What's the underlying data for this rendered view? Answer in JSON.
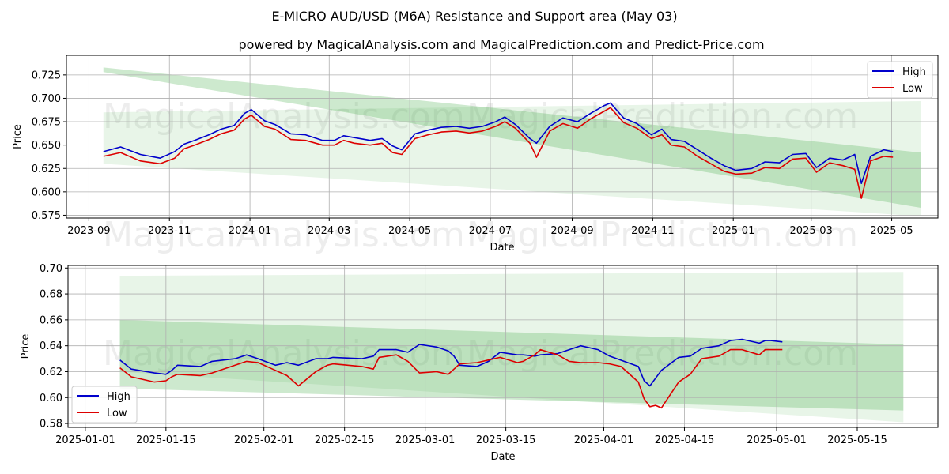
{
  "title": "E-MICRO AUD/USD (M6A) Resistance and Support area (May 03)",
  "subtitle": "powered by MagicalAnalysis.com and MagicalPrediction.com and Predict-Price.com",
  "watermarks": [
    "MagicalAnalysis.com",
    "MagicalPrediction.com"
  ],
  "colors": {
    "high": "#0000cc",
    "low": "#dd0000",
    "band": "#4caf50"
  },
  "chart_data": [
    {
      "type": "line",
      "xlabel": "Date",
      "ylabel": "Price",
      "grid": true,
      "legend_position": "top-right",
      "x_range": [
        "2023-08-15",
        "2025-06-05"
      ],
      "ylim": [
        0.572,
        0.746
      ],
      "yticks": [
        0.575,
        0.6,
        0.625,
        0.65,
        0.675,
        0.7,
        0.725
      ],
      "ytick_labels": [
        "0.575",
        "0.600",
        "0.625",
        "0.650",
        "0.675",
        "0.700",
        "0.725"
      ],
      "xticks": [
        "2023-09-01",
        "2023-11-01",
        "2024-01-01",
        "2024-03-01",
        "2024-05-01",
        "2024-07-01",
        "2024-09-01",
        "2024-11-01",
        "2025-01-01",
        "2025-03-01",
        "2025-05-01"
      ],
      "xtick_labels": [
        "2023-09",
        "2023-11",
        "2024-01",
        "2024-03",
        "2024-05",
        "2024-07",
        "2024-09",
        "2024-11",
        "2025-01",
        "2025-03",
        "2025-05"
      ],
      "bands": [
        {
          "x0": "2023-09-12",
          "x1": "2025-05-23",
          "upper": [
            0.733,
            0.642
          ],
          "lower": [
            0.728,
            0.583
          ],
          "shade": "dark"
        },
        {
          "x0": "2023-09-12",
          "x1": "2025-05-23",
          "upper": [
            0.685,
            0.697
          ],
          "lower": [
            0.63,
            0.574
          ],
          "shade": "light"
        }
      ],
      "series": [
        {
          "name": "High",
          "dates": [
            "2023-09-12",
            "2023-09-25",
            "2023-10-10",
            "2023-10-25",
            "2023-11-05",
            "2023-11-12",
            "2023-11-20",
            "2023-12-01",
            "2023-12-10",
            "2023-12-20",
            "2023-12-28",
            "2024-01-02",
            "2024-01-12",
            "2024-01-20",
            "2024-02-01",
            "2024-02-12",
            "2024-02-25",
            "2024-03-05",
            "2024-03-12",
            "2024-03-20",
            "2024-04-01",
            "2024-04-10",
            "2024-04-18",
            "2024-04-25",
            "2024-05-05",
            "2024-05-15",
            "2024-05-25",
            "2024-06-05",
            "2024-06-15",
            "2024-06-25",
            "2024-07-05",
            "2024-07-12",
            "2024-07-20",
            "2024-07-31",
            "2024-08-05",
            "2024-08-15",
            "2024-08-25",
            "2024-09-05",
            "2024-09-15",
            "2024-09-25",
            "2024-09-30",
            "2024-10-10",
            "2024-10-20",
            "2024-10-31",
            "2024-11-08",
            "2024-11-15",
            "2024-11-25",
            "2024-12-05",
            "2024-12-15",
            "2024-12-25",
            "2025-01-03",
            "2025-01-15",
            "2025-01-25",
            "2025-02-05",
            "2025-02-15",
            "2025-02-25",
            "2025-03-05",
            "2025-03-15",
            "2025-03-25",
            "2025-04-03",
            "2025-04-08",
            "2025-04-15",
            "2025-04-25",
            "2025-05-02"
          ],
          "values": [
            0.643,
            0.648,
            0.64,
            0.636,
            0.643,
            0.651,
            0.655,
            0.661,
            0.667,
            0.671,
            0.684,
            0.688,
            0.676,
            0.672,
            0.662,
            0.661,
            0.655,
            0.655,
            0.66,
            0.658,
            0.655,
            0.657,
            0.649,
            0.645,
            0.662,
            0.666,
            0.669,
            0.67,
            0.668,
            0.67,
            0.675,
            0.68,
            0.672,
            0.657,
            0.652,
            0.67,
            0.679,
            0.675,
            0.684,
            0.692,
            0.695,
            0.679,
            0.673,
            0.661,
            0.667,
            0.656,
            0.654,
            0.645,
            0.636,
            0.628,
            0.623,
            0.625,
            0.632,
            0.631,
            0.64,
            0.641,
            0.626,
            0.636,
            0.634,
            0.64,
            0.609,
            0.638,
            0.645,
            0.643
          ]
        },
        {
          "name": "Low",
          "dates": [
            "2023-09-12",
            "2023-09-25",
            "2023-10-10",
            "2023-10-25",
            "2023-11-05",
            "2023-11-12",
            "2023-11-20",
            "2023-12-01",
            "2023-12-10",
            "2023-12-20",
            "2023-12-28",
            "2024-01-02",
            "2024-01-12",
            "2024-01-20",
            "2024-02-01",
            "2024-02-12",
            "2024-02-25",
            "2024-03-05",
            "2024-03-12",
            "2024-03-20",
            "2024-04-01",
            "2024-04-10",
            "2024-04-18",
            "2024-04-25",
            "2024-05-05",
            "2024-05-15",
            "2024-05-25",
            "2024-06-05",
            "2024-06-15",
            "2024-06-25",
            "2024-07-05",
            "2024-07-12",
            "2024-07-20",
            "2024-07-31",
            "2024-08-05",
            "2024-08-15",
            "2024-08-25",
            "2024-09-05",
            "2024-09-15",
            "2024-09-25",
            "2024-09-30",
            "2024-10-10",
            "2024-10-20",
            "2024-10-31",
            "2024-11-08",
            "2024-11-15",
            "2024-11-25",
            "2024-12-05",
            "2024-12-15",
            "2024-12-25",
            "2025-01-03",
            "2025-01-15",
            "2025-01-25",
            "2025-02-05",
            "2025-02-15",
            "2025-02-25",
            "2025-03-05",
            "2025-03-15",
            "2025-03-25",
            "2025-04-03",
            "2025-04-08",
            "2025-04-15",
            "2025-04-25",
            "2025-05-02"
          ],
          "values": [
            0.638,
            0.642,
            0.633,
            0.63,
            0.636,
            0.646,
            0.65,
            0.656,
            0.662,
            0.666,
            0.678,
            0.682,
            0.67,
            0.667,
            0.656,
            0.655,
            0.65,
            0.65,
            0.655,
            0.652,
            0.65,
            0.652,
            0.642,
            0.64,
            0.657,
            0.661,
            0.664,
            0.665,
            0.663,
            0.665,
            0.67,
            0.675,
            0.668,
            0.652,
            0.637,
            0.665,
            0.673,
            0.668,
            0.678,
            0.686,
            0.69,
            0.674,
            0.668,
            0.657,
            0.661,
            0.65,
            0.648,
            0.638,
            0.63,
            0.622,
            0.619,
            0.62,
            0.626,
            0.625,
            0.635,
            0.636,
            0.621,
            0.631,
            0.628,
            0.624,
            0.593,
            0.633,
            0.638,
            0.637
          ]
        }
      ]
    },
    {
      "type": "line",
      "xlabel": "Date",
      "ylabel": "Price",
      "grid": true,
      "legend_position": "bottom-left",
      "x_range": [
        "2024-12-29",
        "2025-05-29"
      ],
      "ylim": [
        0.577,
        0.702
      ],
      "yticks": [
        0.58,
        0.6,
        0.62,
        0.64,
        0.66,
        0.68,
        0.7
      ],
      "ytick_labels": [
        "0.58",
        "0.60",
        "0.62",
        "0.64",
        "0.66",
        "0.68",
        "0.70"
      ],
      "xticks": [
        "2025-01-01",
        "2025-01-15",
        "2025-02-01",
        "2025-02-15",
        "2025-03-01",
        "2025-03-15",
        "2025-04-01",
        "2025-04-15",
        "2025-05-01",
        "2025-05-15"
      ],
      "xtick_labels": [
        "2025-01-01",
        "2025-01-15",
        "2025-02-01",
        "2025-02-15",
        "2025-03-01",
        "2025-03-15",
        "2025-04-01",
        "2025-04-15",
        "2025-05-01",
        "2025-05-15"
      ],
      "bands": [
        {
          "x0": "2025-01-07",
          "x1": "2025-05-23",
          "upper": [
            0.66,
            0.641
          ],
          "lower": [
            0.607,
            0.59
          ],
          "shade": "dark"
        },
        {
          "x0": "2025-01-07",
          "x1": "2025-05-23",
          "upper": [
            0.694,
            0.697
          ],
          "lower": [
            0.62,
            0.581
          ],
          "shade": "light"
        }
      ],
      "series": [
        {
          "name": "High",
          "dates": [
            "2025-01-07",
            "2025-01-09",
            "2025-01-13",
            "2025-01-15",
            "2025-01-16",
            "2025-01-17",
            "2025-01-21",
            "2025-01-23",
            "2025-01-27",
            "2025-01-29",
            "2025-01-31",
            "2025-02-03",
            "2025-02-05",
            "2025-02-07",
            "2025-02-10",
            "2025-02-12",
            "2025-02-13",
            "2025-02-18",
            "2025-02-20",
            "2025-02-21",
            "2025-02-24",
            "2025-02-26",
            "2025-02-28",
            "2025-03-03",
            "2025-03-05",
            "2025-03-06",
            "2025-03-07",
            "2025-03-10",
            "2025-03-12",
            "2025-03-14",
            "2025-03-17",
            "2025-03-18",
            "2025-03-20",
            "2025-03-21",
            "2025-03-24",
            "2025-03-26",
            "2025-03-28",
            "2025-03-31",
            "2025-04-02",
            "2025-04-07",
            "2025-04-08",
            "2025-04-09",
            "2025-04-10",
            "2025-04-11",
            "2025-04-14",
            "2025-04-16",
            "2025-04-18",
            "2025-04-21",
            "2025-04-23",
            "2025-04-25",
            "2025-04-28",
            "2025-04-29",
            "2025-04-30",
            "2025-05-02"
          ],
          "values": [
            0.629,
            0.622,
            0.619,
            0.618,
            0.621,
            0.625,
            0.624,
            0.628,
            0.63,
            0.633,
            0.63,
            0.625,
            0.627,
            0.625,
            0.63,
            0.63,
            0.631,
            0.63,
            0.632,
            0.637,
            0.637,
            0.635,
            0.641,
            0.639,
            0.636,
            0.632,
            0.625,
            0.624,
            0.628,
            0.635,
            0.633,
            0.633,
            0.632,
            0.633,
            0.634,
            0.637,
            0.64,
            0.637,
            0.632,
            0.624,
            0.613,
            0.609,
            0.615,
            0.621,
            0.631,
            0.632,
            0.638,
            0.64,
            0.644,
            0.645,
            0.642,
            0.644,
            0.644,
            0.643
          ]
        },
        {
          "name": "Low",
          "dates": [
            "2025-01-07",
            "2025-01-09",
            "2025-01-13",
            "2025-01-15",
            "2025-01-16",
            "2025-01-17",
            "2025-01-21",
            "2025-01-23",
            "2025-01-27",
            "2025-01-29",
            "2025-01-31",
            "2025-02-03",
            "2025-02-05",
            "2025-02-07",
            "2025-02-10",
            "2025-02-12",
            "2025-02-13",
            "2025-02-18",
            "2025-02-20",
            "2025-02-21",
            "2025-02-24",
            "2025-02-26",
            "2025-02-28",
            "2025-03-03",
            "2025-03-05",
            "2025-03-06",
            "2025-03-07",
            "2025-03-10",
            "2025-03-12",
            "2025-03-14",
            "2025-03-17",
            "2025-03-18",
            "2025-03-20",
            "2025-03-21",
            "2025-03-24",
            "2025-03-26",
            "2025-03-28",
            "2025-03-31",
            "2025-04-02",
            "2025-04-04",
            "2025-04-07",
            "2025-04-08",
            "2025-04-09",
            "2025-04-10",
            "2025-04-11",
            "2025-04-14",
            "2025-04-16",
            "2025-04-18",
            "2025-04-21",
            "2025-04-23",
            "2025-04-25",
            "2025-04-28",
            "2025-04-29",
            "2025-04-30",
            "2025-05-02"
          ],
          "values": [
            0.623,
            0.616,
            0.612,
            0.613,
            0.616,
            0.618,
            0.617,
            0.619,
            0.625,
            0.628,
            0.627,
            0.621,
            0.617,
            0.609,
            0.62,
            0.625,
            0.626,
            0.624,
            0.622,
            0.631,
            0.633,
            0.628,
            0.619,
            0.62,
            0.618,
            0.622,
            0.626,
            0.627,
            0.629,
            0.631,
            0.627,
            0.628,
            0.633,
            0.637,
            0.633,
            0.628,
            0.627,
            0.627,
            0.626,
            0.624,
            0.612,
            0.599,
            0.593,
            0.594,
            0.592,
            0.612,
            0.618,
            0.63,
            0.632,
            0.637,
            0.637,
            0.633,
            0.637,
            0.637,
            0.637
          ]
        }
      ]
    }
  ]
}
